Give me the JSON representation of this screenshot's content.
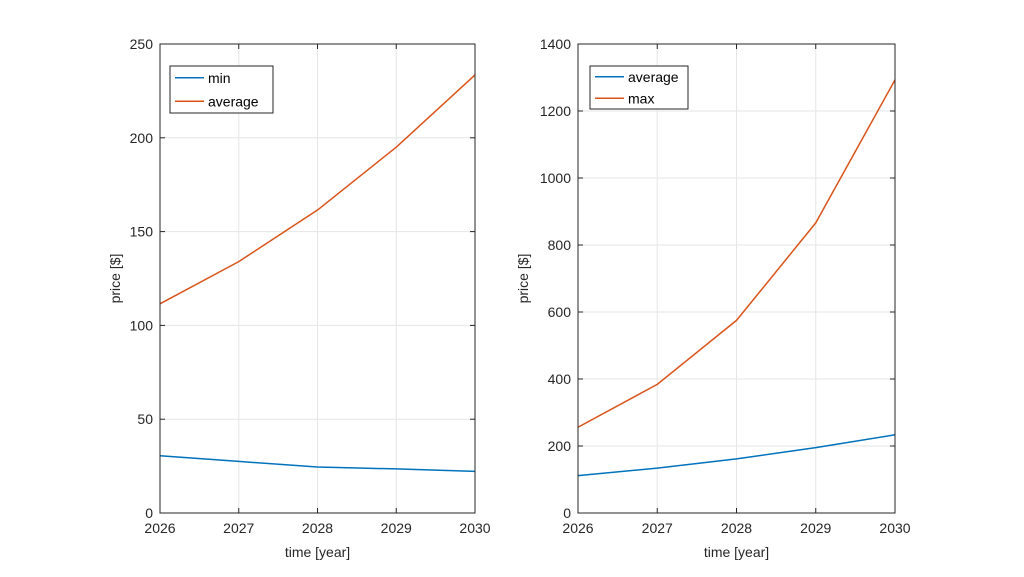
{
  "chart_data": [
    {
      "type": "line",
      "title": "",
      "xlabel": "time [year]",
      "ylabel": "price [$]",
      "xlim": [
        2026,
        2030
      ],
      "ylim": [
        0,
        250
      ],
      "xticks": [
        2026,
        2027,
        2028,
        2029,
        2030
      ],
      "yticks": [
        0,
        50,
        100,
        150,
        200,
        250
      ],
      "grid": true,
      "legend_position": "top-left",
      "x": [
        2026,
        2027,
        2028,
        2029,
        2030
      ],
      "series": [
        {
          "name": "min",
          "color": "#0072BD",
          "values": [
            30.5,
            27.5,
            24.5,
            23.5,
            22.2
          ]
        },
        {
          "name": "average",
          "color": "#D95319",
          "values": [
            111.5,
            134,
            161.5,
            195,
            233.5
          ]
        }
      ]
    },
    {
      "type": "line",
      "title": "",
      "xlabel": "time [year]",
      "ylabel": "price [$]",
      "xlim": [
        2026,
        2030
      ],
      "ylim": [
        0,
        1400
      ],
      "xticks": [
        2026,
        2027,
        2028,
        2029,
        2030
      ],
      "yticks": [
        0,
        200,
        400,
        600,
        800,
        1000,
        1200,
        1400
      ],
      "grid": true,
      "legend_position": "top-left",
      "x": [
        2026,
        2027,
        2028,
        2029,
        2030
      ],
      "series": [
        {
          "name": "average",
          "color": "#0072BD",
          "values": [
            111.5,
            134,
            161.5,
            195,
            233.5
          ]
        },
        {
          "name": "max",
          "color": "#D95319",
          "values": [
            256,
            384,
            575,
            866,
            1293
          ]
        }
      ]
    }
  ]
}
